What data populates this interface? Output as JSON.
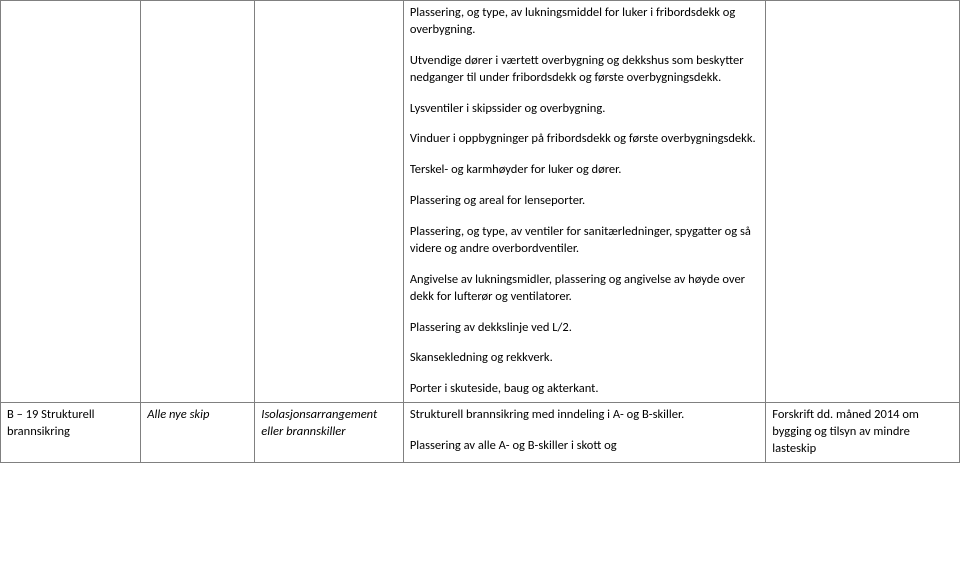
{
  "row1": {
    "c1": "",
    "c2": "",
    "c3": "",
    "c4": {
      "p1": "Plassering, og type, av lukningsmiddel for luker i fribordsdekk og overbygning.",
      "p2": "Utvendige dører i værtett overbygning og dekkshus som beskytter nedganger til under fribordsdekk og første overbygningsdekk.",
      "p3": "Lysventiler i skipssider og overbygning.",
      "p4": "Vinduer i oppbygninger på fribordsdekk og første overbygningsdekk.",
      "p5": "Terskel- og karmhøyder for luker og dører.",
      "p6": "Plassering og areal for lenseporter.",
      "p7": "Plassering, og type, av ventiler for sanitærledninger, spygatter og så videre og andre overbordventiler.",
      "p8": "Angivelse av lukningsmidler, plassering og angivelse av høyde over dekk for lufterør og ventilatorer.",
      "p9": "Plassering av dekkslinje ved L/2.",
      "p10": "Skansekledning og rekkverk.",
      "p11": "Porter i skuteside, baug og akterkant."
    },
    "c5": ""
  },
  "row2": {
    "c1": "B – 19 Strukturell brannsikring",
    "c2": "Alle nye skip",
    "c3": "Isolasjonsarrangement eller brannskiller",
    "c4": {
      "p1": "Strukturell brannsikring med inndeling i A- og B-skiller.",
      "p2": "Plassering av alle A- og B-skiller i skott og"
    },
    "c5": "Forskrift dd. måned 2014 om bygging og tilsyn av mindre lasteskip"
  }
}
